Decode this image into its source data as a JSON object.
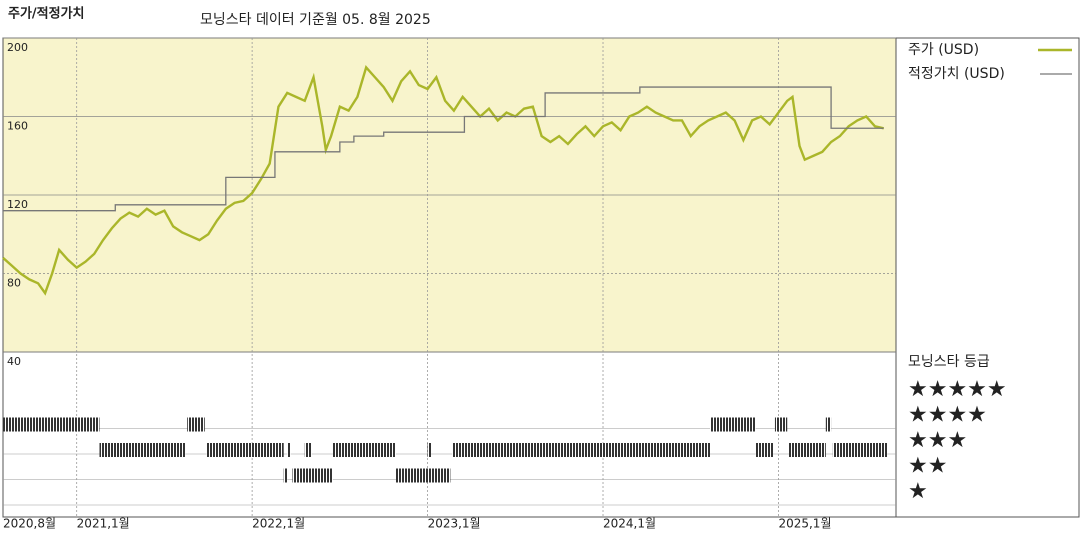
{
  "chart_data": [
    {
      "type": "line",
      "title": "주가/적정가치",
      "subtitle": "모닝스타 데이터 기준월 05. 8월 2025",
      "background": "#f8f4cc",
      "xlim": [
        2020.58,
        2025.67
      ],
      "xticks": [
        {
          "value": 2020.58,
          "label": "2020,8월"
        },
        {
          "value": 2021.0,
          "label": "2021,1월"
        },
        {
          "value": 2022.0,
          "label": "2022,1월"
        },
        {
          "value": 2023.0,
          "label": "2023,1월"
        },
        {
          "value": 2024.0,
          "label": "2024,1월"
        },
        {
          "value": 2025.0,
          "label": "2025,1월"
        }
      ],
      "ylim": [
        40,
        200
      ],
      "yticks": [
        40,
        80,
        120,
        160,
        200
      ],
      "grid": true,
      "series": [
        {
          "name": "주가 (USD)",
          "color": "#aab62a",
          "x": [
            2020.58,
            2020.63,
            2020.68,
            2020.73,
            2020.78,
            2020.82,
            2020.86,
            2020.9,
            2020.95,
            2021.0,
            2021.05,
            2021.1,
            2021.15,
            2021.2,
            2021.25,
            2021.3,
            2021.35,
            2021.4,
            2021.45,
            2021.5,
            2021.55,
            2021.6,
            2021.65,
            2021.7,
            2021.75,
            2021.8,
            2021.85,
            2021.9,
            2021.95,
            2022.0,
            2022.05,
            2022.1,
            2022.15,
            2022.2,
            2022.25,
            2022.3,
            2022.35,
            2022.4,
            2022.42,
            2022.45,
            2022.5,
            2022.55,
            2022.6,
            2022.65,
            2022.7,
            2022.75,
            2022.8,
            2022.85,
            2022.9,
            2022.95,
            2023.0,
            2023.05,
            2023.1,
            2023.15,
            2023.2,
            2023.25,
            2023.3,
            2023.35,
            2023.4,
            2023.45,
            2023.5,
            2023.55,
            2023.6,
            2023.65,
            2023.7,
            2023.75,
            2023.8,
            2023.85,
            2023.9,
            2023.95,
            2024.0,
            2024.05,
            2024.1,
            2024.15,
            2024.2,
            2024.25,
            2024.3,
            2024.35,
            2024.4,
            2024.45,
            2024.5,
            2024.55,
            2024.6,
            2024.65,
            2024.7,
            2024.75,
            2024.8,
            2024.85,
            2024.9,
            2024.95,
            2025.0,
            2025.05,
            2025.08,
            2025.12,
            2025.15,
            2025.2,
            2025.25,
            2025.3,
            2025.35,
            2025.4,
            2025.45,
            2025.5,
            2025.55,
            2025.6
          ],
          "values": [
            88,
            84,
            80,
            77,
            75,
            70,
            80,
            92,
            87,
            83,
            86,
            90,
            97,
            103,
            108,
            111,
            109,
            113,
            110,
            112,
            104,
            101,
            99,
            97,
            100,
            107,
            113,
            116,
            117,
            121,
            128,
            136,
            165,
            172,
            170,
            168,
            180,
            155,
            143,
            150,
            165,
            163,
            170,
            185,
            180,
            175,
            168,
            178,
            183,
            176,
            174,
            180,
            168,
            163,
            170,
            165,
            160,
            164,
            158,
            162,
            160,
            164,
            165,
            150,
            147,
            150,
            146,
            151,
            155,
            150,
            155,
            157,
            153,
            160,
            162,
            165,
            162,
            160,
            158,
            158,
            150,
            155,
            158,
            160,
            162,
            158,
            148,
            158,
            160,
            156,
            162,
            168,
            170,
            145,
            138,
            140,
            142,
            147,
            150,
            155,
            158,
            160,
            155,
            154
          ]
        },
        {
          "name": "적정가치 (USD)",
          "color": "#777777",
          "step": true,
          "x": [
            2020.58,
            2021.22,
            2021.85,
            2022.13,
            2022.5,
            2022.58,
            2022.75,
            2023.21,
            2023.67,
            2024.21,
            2025.3,
            2025.6
          ],
          "values": [
            112,
            115,
            129,
            142,
            147,
            150,
            152,
            160,
            172,
            175,
            154,
            154
          ]
        }
      ]
    },
    {
      "type": "timeline",
      "title": "모닝스타 등급",
      "categories": [
        "★★★★★",
        "★★★★",
        "★★★",
        "★★",
        "★"
      ],
      "segments": [
        {
          "start": 2020.58,
          "end": 2021.13,
          "stars": 4
        },
        {
          "start": 2021.13,
          "end": 2021.62,
          "stars": 3
        },
        {
          "start": 2021.63,
          "end": 2021.73,
          "stars": 4
        },
        {
          "start": 2021.74,
          "end": 2022.18,
          "stars": 3
        },
        {
          "start": 2022.18,
          "end": 2022.2,
          "stars": 2
        },
        {
          "start": 2022.2,
          "end": 2022.22,
          "stars": 3
        },
        {
          "start": 2022.23,
          "end": 2022.46,
          "stars": 2
        },
        {
          "start": 2022.3,
          "end": 2022.34,
          "stars": 3
        },
        {
          "start": 2022.46,
          "end": 2022.82,
          "stars": 3
        },
        {
          "start": 2022.82,
          "end": 2023.13,
          "stars": 2
        },
        {
          "start": 2023.0,
          "end": 2023.02,
          "stars": 3
        },
        {
          "start": 2023.14,
          "end": 2024.61,
          "stars": 3
        },
        {
          "start": 2024.61,
          "end": 2024.87,
          "stars": 4
        },
        {
          "start": 2024.87,
          "end": 2024.97,
          "stars": 3
        },
        {
          "start": 2024.98,
          "end": 2025.05,
          "stars": 4
        },
        {
          "start": 2025.06,
          "end": 2025.27,
          "stars": 3
        },
        {
          "start": 2025.27,
          "end": 2025.3,
          "stars": 4
        },
        {
          "start": 2025.31,
          "end": 2025.62,
          "stars": 3
        }
      ]
    }
  ]
}
